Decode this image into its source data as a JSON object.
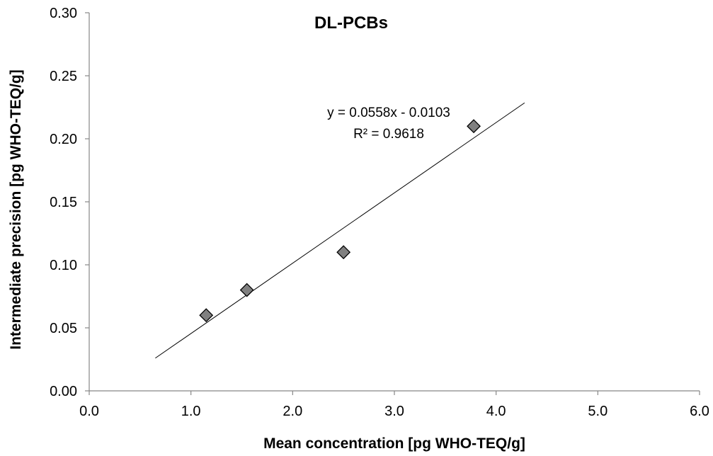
{
  "chart_data": {
    "type": "scatter",
    "title": "DL-PCBs",
    "xlabel": "Mean concentration [pg WHO-TEQ/g]",
    "ylabel": "Intermediate precision [pg WHO-TEQ/g]",
    "xlim": [
      0,
      6
    ],
    "ylim": [
      0,
      0.3
    ],
    "x_ticks": [
      "0.0",
      "1.0",
      "2.0",
      "3.0",
      "4.0",
      "5.0",
      "6.0"
    ],
    "y_ticks": [
      "0.00",
      "0.05",
      "0.10",
      "0.15",
      "0.20",
      "0.25",
      "0.30"
    ],
    "grid": false,
    "series": [
      {
        "marker": "diamond",
        "color": "#808080",
        "x": [
          1.15,
          1.55,
          2.5,
          3.78
        ],
        "y": [
          0.06,
          0.08,
          0.11,
          0.21
        ]
      }
    ],
    "trendline": {
      "slope": 0.0558,
      "intercept": -0.0103,
      "x_range": [
        0.65,
        4.28
      ],
      "color": "#000000"
    },
    "annotations": {
      "equation": "y = 0.0558x - 0.0103",
      "r_squared": "R² = 0.9618"
    }
  }
}
